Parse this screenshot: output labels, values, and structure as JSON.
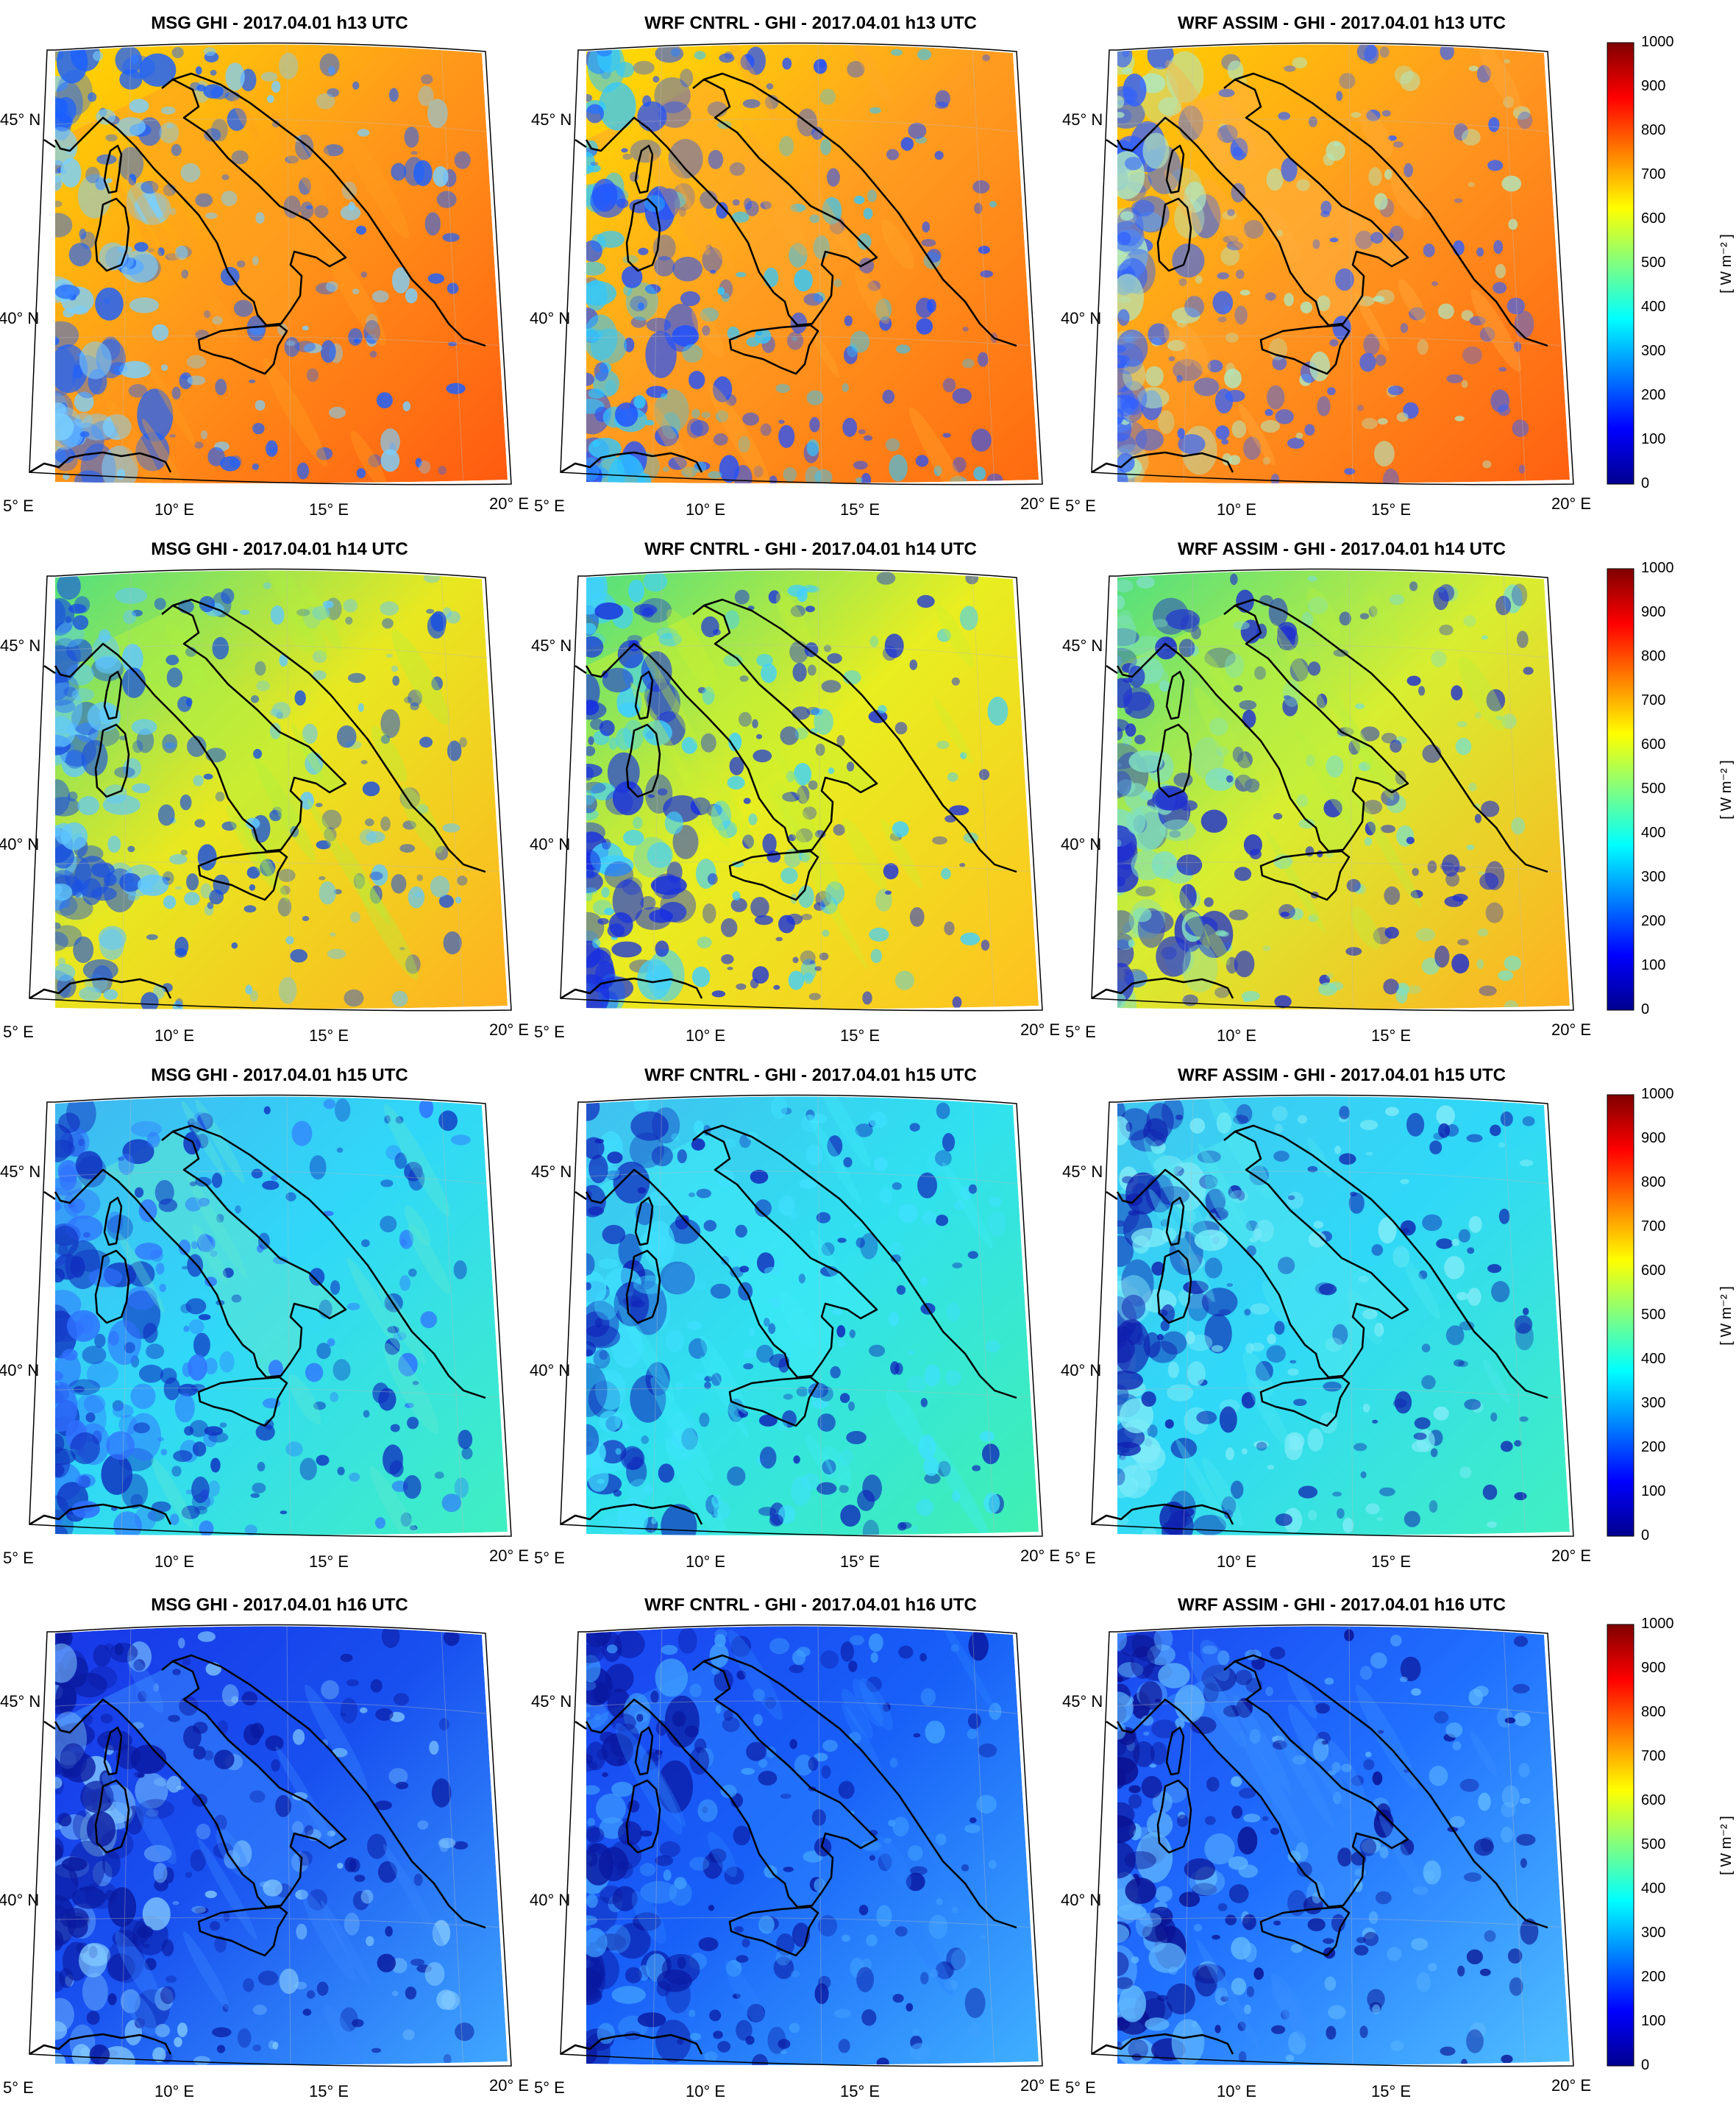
{
  "colorbar": {
    "ticks": [
      "1000",
      "900",
      "800",
      "700",
      "600",
      "500",
      "400",
      "300",
      "200",
      "100",
      "0"
    ],
    "unit": "[ W m⁻² ]",
    "colormap": [
      "#00008f",
      "#0000ff",
      "#0080ff",
      "#00ffff",
      "#80ff80",
      "#ffff00",
      "#ff8000",
      "#ff0000",
      "#800000"
    ]
  },
  "axes": {
    "lat_labels": [
      "45° N",
      "40° N"
    ],
    "lon_labels": [
      "5° E",
      "10° E",
      "15° E",
      "20° E"
    ]
  },
  "rows": [
    {
      "hour": "h13",
      "titles": [
        "MSG GHI - 2017.04.01 h13 UTC",
        "WRF CNTRL - GHI - 2017.04.01 h13 UTC",
        "WRF ASSIM - GHI - 2017.04.01 h13 UTC"
      ],
      "fields": [
        {
          "base": "#ff9a1a",
          "land": "#ffa020",
          "south": "#ff5a10",
          "north": "#ffd800",
          "cloud": "#1a60ff",
          "cloud2": "#7ad0ff"
        },
        {
          "base": "#ff9e20",
          "land": "#ffa82a",
          "south": "#ff6a10",
          "north": "#ffe000",
          "cloud": "#2050ff",
          "cloud2": "#30c8ff"
        },
        {
          "base": "#ff9a20",
          "land": "#ffb040",
          "south": "#ff6010",
          "north": "#ffd000",
          "cloud": "#3060ff",
          "cloud2": "#b0e8c0"
        }
      ]
    },
    {
      "hour": "h14",
      "titles": [
        "MSG GHI - 2017.04.01 h14 UTC",
        "WRF CNTRL - GHI - 2017.04.01 h14 UTC",
        "WRF ASSIM - GHI - 2017.04.01 h14 UTC"
      ],
      "fields": [
        {
          "base": "#e8e820",
          "land": "#b0f040",
          "south": "#ffb020",
          "north": "#50e080",
          "cloud": "#1a50e0",
          "cloud2": "#60c8ff"
        },
        {
          "base": "#e8ee20",
          "land": "#c8f030",
          "south": "#ffc020",
          "north": "#50e080",
          "cloud": "#1830e0",
          "cloud2": "#40d0ff"
        },
        {
          "base": "#d8ee30",
          "land": "#b8f040",
          "south": "#ffb020",
          "north": "#50e080",
          "cloud": "#2030d0",
          "cloud2": "#80e0c0"
        }
      ]
    },
    {
      "hour": "h15",
      "titles": [
        "MSG GHI - 2017.04.01 h15 UTC",
        "WRF CNTRL - GHI - 2017.04.01 h15 UTC",
        "WRF ASSIM - GHI - 2017.04.01 h15 UTC"
      ],
      "fields": [
        {
          "base": "#30d8f8",
          "land": "#60e8d0",
          "south": "#40f0c0",
          "north": "#40b8f0",
          "cloud": "#1030c0",
          "cloud2": "#3070ff"
        },
        {
          "base": "#30e0f0",
          "land": "#40ecf8",
          "south": "#40f0b0",
          "north": "#40c0f0",
          "cloud": "#1020b8",
          "cloud2": "#40e0ff"
        },
        {
          "base": "#30d8f8",
          "land": "#50e8f0",
          "south": "#40f0c0",
          "north": "#40c8f0",
          "cloud": "#1020b0",
          "cloud2": "#80ecf8"
        }
      ]
    },
    {
      "hour": "h16",
      "titles": [
        "MSG GHI - 2017.04.01 h16 UTC",
        "WRF CNTRL - GHI - 2017.04.01 h16 UTC",
        "WRF ASSIM - GHI - 2017.04.01 h16 UTC"
      ],
      "fields": [
        {
          "base": "#1850f0",
          "land": "#3888ff",
          "south": "#40a8ff",
          "north": "#1838e8",
          "cloud": "#0a1aa0",
          "cloud2": "#80c8ff"
        },
        {
          "base": "#1860f8",
          "land": "#2a80ff",
          "south": "#40b0ff",
          "north": "#1a44f0",
          "cloud": "#0a18a0",
          "cloud2": "#40a0ff"
        },
        {
          "base": "#2070ff",
          "land": "#3890ff",
          "south": "#50c0ff",
          "north": "#1a48f0",
          "cloud": "#0a1090",
          "cloud2": "#60b8ff"
        }
      ]
    }
  ]
}
